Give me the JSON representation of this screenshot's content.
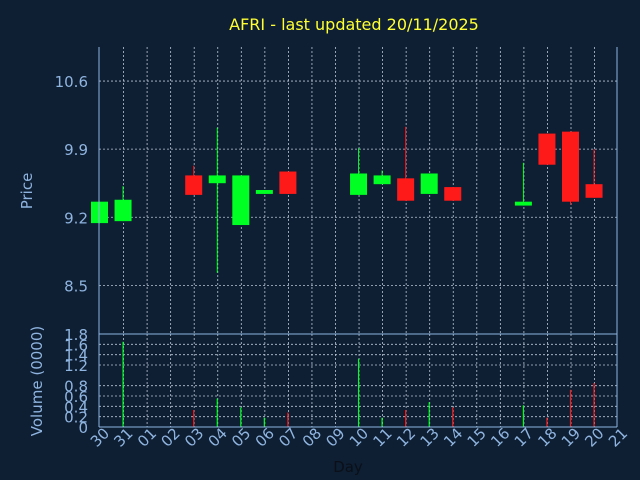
{
  "colors": {
    "background": "#0e1f33",
    "grid": "#b9c6d6",
    "axis": "#8fb4e0",
    "title": "#ffff33",
    "up": "#00ff22",
    "down": "#ff1a1a"
  },
  "chart_data": [
    {
      "type": "candlestick",
      "title": "AFRI - last updated 20/11/2025",
      "ylabel": "Price",
      "ylim": [
        8.0,
        10.95
      ],
      "yticks": [
        8.5,
        9.2,
        9.9,
        10.6
      ],
      "grid": true,
      "x_labels": [
        "30",
        "31",
        "01",
        "02",
        "03",
        "04",
        "05",
        "06",
        "07",
        "08",
        "09",
        "10",
        "11",
        "12",
        "13",
        "14",
        "15",
        "16",
        "17",
        "18",
        "19",
        "20",
        "21"
      ],
      "candles": [
        {
          "day": "30",
          "open": 9.14,
          "close": 9.36,
          "high": 9.36,
          "low": 9.14
        },
        {
          "day": "31",
          "open": 9.16,
          "close": 9.38,
          "high": 9.52,
          "low": 9.16
        },
        {
          "day": "03",
          "open": 9.63,
          "close": 9.43,
          "high": 9.73,
          "low": 9.43
        },
        {
          "day": "04",
          "open": 9.55,
          "close": 9.63,
          "high": 10.12,
          "low": 8.63
        },
        {
          "day": "05",
          "open": 9.12,
          "close": 9.63,
          "high": 9.63,
          "low": 9.12
        },
        {
          "day": "06",
          "open": 9.44,
          "close": 9.48,
          "high": 9.48,
          "low": 9.44
        },
        {
          "day": "07",
          "open": 9.67,
          "close": 9.44,
          "high": 9.67,
          "low": 9.44
        },
        {
          "day": "10",
          "open": 9.43,
          "close": 9.65,
          "high": 9.91,
          "low": 9.43
        },
        {
          "day": "11",
          "open": 9.54,
          "close": 9.63,
          "high": 9.68,
          "low": 9.54
        },
        {
          "day": "12",
          "open": 9.6,
          "close": 9.37,
          "high": 10.13,
          "low": 9.37
        },
        {
          "day": "13",
          "open": 9.44,
          "close": 9.65,
          "high": 9.65,
          "low": 9.44
        },
        {
          "day": "14",
          "open": 9.51,
          "close": 9.37,
          "high": 9.51,
          "low": 9.37
        },
        {
          "day": "17",
          "open": 9.32,
          "close": 9.36,
          "high": 9.76,
          "low": 9.32
        },
        {
          "day": "18",
          "open": 10.06,
          "close": 9.74,
          "high": 10.06,
          "low": 9.74
        },
        {
          "day": "19",
          "open": 10.08,
          "close": 9.36,
          "high": 10.08,
          "low": 9.33
        },
        {
          "day": "20",
          "open": 9.54,
          "close": 9.4,
          "high": 9.9,
          "low": 9.4
        }
      ]
    },
    {
      "type": "bar",
      "ylabel": "Volume (0000)",
      "xlabel": "Day",
      "ylim": [
        0,
        1.8
      ],
      "yticks": [
        0,
        0.2,
        0.4,
        0.6,
        0.8,
        1.2,
        1.4,
        1.6,
        1.8
      ],
      "categories": [
        "30",
        "31",
        "01",
        "02",
        "03",
        "04",
        "05",
        "06",
        "07",
        "08",
        "09",
        "10",
        "11",
        "12",
        "13",
        "14",
        "15",
        "16",
        "17",
        "18",
        "19",
        "20",
        "21"
      ],
      "values": [
        0,
        1.65,
        0,
        0,
        0.33,
        0.55,
        0.38,
        0.18,
        0.28,
        0,
        0,
        1.32,
        0.18,
        0.33,
        0.48,
        0.38,
        0,
        0,
        0.42,
        0.18,
        0.72,
        0.85,
        0
      ],
      "direction": [
        "up",
        "up",
        "none",
        "none",
        "down",
        "up",
        "up",
        "up",
        "down",
        "none",
        "none",
        "up",
        "up",
        "down",
        "up",
        "down",
        "none",
        "none",
        "up",
        "down",
        "down",
        "down",
        "none"
      ]
    }
  ]
}
